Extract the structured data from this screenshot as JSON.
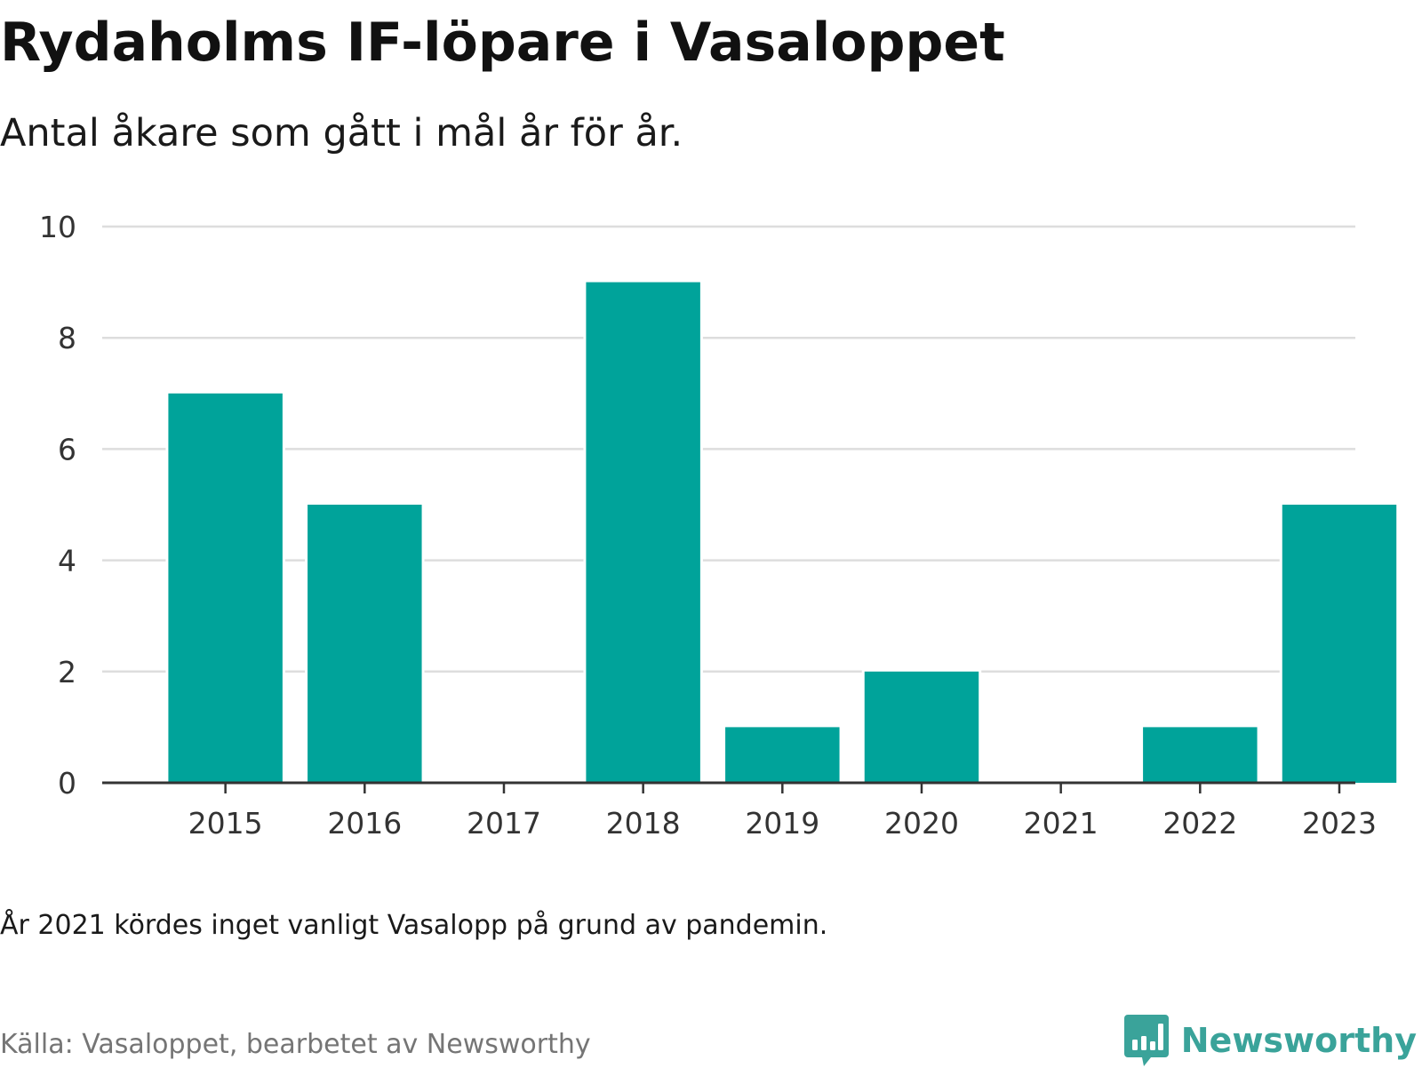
{
  "header": {
    "title": "Rydaholms IF-löpare i Vasaloppet",
    "subtitle": "Antal åkare som gått i mål år för år."
  },
  "footer": {
    "note": "År 2021 kördes inget vanligt Vasalopp på grund av pandemin.",
    "source": "Källa: Vasaloppet, bearbetet av Newsworthy",
    "brand": "Newsworthy",
    "brand_icon": "chart-speech-bubble-icon"
  },
  "colors": {
    "bar": "#00a39a",
    "grid": "#dddddd",
    "axis": "#333333",
    "brand": "#3aa39a"
  },
  "chart_data": {
    "type": "bar",
    "title": "Rydaholms IF-löpare i Vasaloppet",
    "subtitle": "Antal åkare som gått i mål år för år.",
    "xlabel": "",
    "ylabel": "",
    "categories": [
      "2015",
      "2016",
      "2017",
      "2018",
      "2019",
      "2020",
      "2021",
      "2022",
      "2023"
    ],
    "values": [
      7,
      5,
      0,
      9,
      1,
      2,
      0,
      1,
      5
    ],
    "ylim": [
      0,
      10
    ],
    "yticks": [
      0,
      2,
      4,
      6,
      8,
      10
    ],
    "grid": true,
    "legend": "none"
  }
}
